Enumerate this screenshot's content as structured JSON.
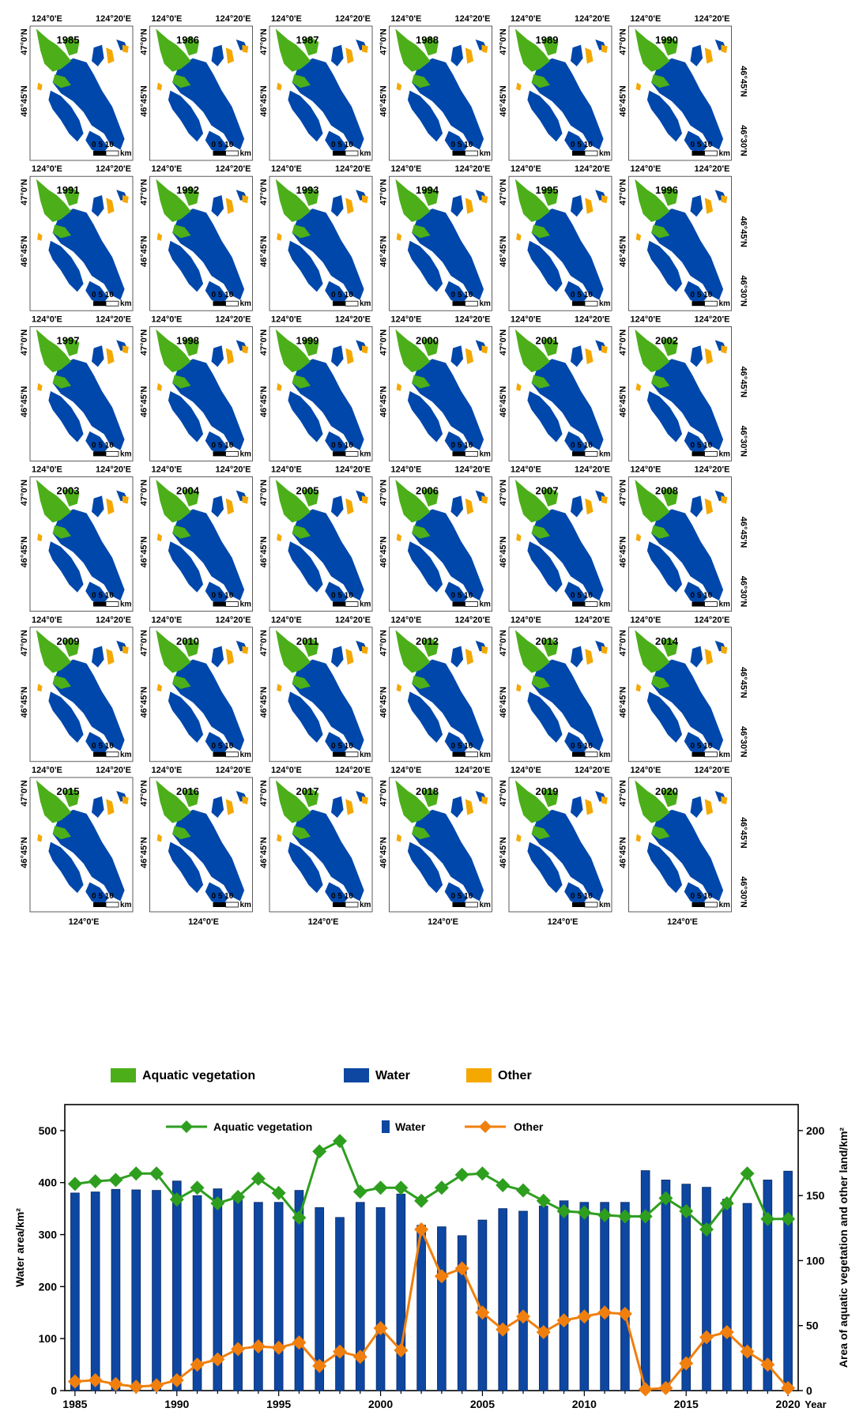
{
  "maps": {
    "years": [
      "1985",
      "1986",
      "1987",
      "1988",
      "1989",
      "1990",
      "1991",
      "1992",
      "1993",
      "1994",
      "1995",
      "1996",
      "1997",
      "1998",
      "1999",
      "2000",
      "2001",
      "2002",
      "2003",
      "2004",
      "2005",
      "2006",
      "2007",
      "2008",
      "2009",
      "2010",
      "2011",
      "2012",
      "2013",
      "2014",
      "2015",
      "2016",
      "2017",
      "2018",
      "2019",
      "2020"
    ],
    "lon_left_label": "124°0'E",
    "lon_right_label": "124°20'E",
    "lat_top_label": "47°0'N",
    "lat_mid_label": "46°45'N",
    "lat_bottom_label": "46°30'N",
    "scale_label": "0   5  10",
    "scale_unit": "km",
    "bottom_lon_label": "124°0'E",
    "colors": {
      "aquatic_vegetation": "#4caf1a",
      "water": "#0047ab",
      "other": "#f5a800"
    }
  },
  "map_legend": {
    "items": [
      {
        "label": "Aquatic vegetation",
        "color": "#4caf1a"
      },
      {
        "label": "Water",
        "color": "#0d47a1"
      },
      {
        "label": "Other",
        "color": "#f5a800"
      }
    ]
  },
  "chart_data": {
    "type": "bar",
    "x": [
      "1985",
      "1986",
      "1987",
      "1988",
      "1989",
      "1990",
      "1991",
      "1992",
      "1993",
      "1994",
      "1995",
      "1996",
      "1997",
      "1998",
      "1999",
      "2000",
      "2001",
      "2002",
      "2003",
      "2004",
      "2005",
      "2006",
      "2007",
      "2008",
      "2009",
      "2010",
      "2011",
      "2012",
      "2013",
      "2014",
      "2015",
      "2016",
      "2017",
      "2018",
      "2019",
      "2020"
    ],
    "x_tick_labels": [
      "1985",
      "1990",
      "1995",
      "2000",
      "2005",
      "2010",
      "2015",
      "2020"
    ],
    "xlabel": "Year",
    "ylabel_left": "Water area/km²",
    "ylabel_right": "Area of aquatic vegetation and other land/km²",
    "ylim_left": [
      0,
      550
    ],
    "yticks_left": [
      "0",
      "100",
      "200",
      "300",
      "400",
      "500"
    ],
    "ylim_right": [
      0,
      220
    ],
    "yticks_right": [
      "0",
      "50",
      "100",
      "150",
      "200"
    ],
    "series": [
      {
        "name": "Water",
        "type": "bar",
        "axis": "left",
        "color": "#0d47a1",
        "values": [
          380,
          382,
          387,
          386,
          385,
          403,
          375,
          388,
          375,
          362,
          362,
          385,
          352,
          333,
          362,
          352,
          378,
          318,
          315,
          298,
          328,
          350,
          345,
          355,
          365,
          362,
          362,
          362,
          423,
          405,
          397,
          391,
          368,
          360,
          405,
          422
        ]
      },
      {
        "name": "Aquatic vegetation",
        "type": "line",
        "axis": "right",
        "color": "#2e9e1f",
        "values": [
          159,
          161,
          162,
          167,
          167,
          147,
          156,
          144,
          149,
          163,
          152,
          133,
          184,
          192,
          153,
          156,
          156,
          146,
          156,
          166,
          167,
          158,
          154,
          146,
          138,
          137,
          135,
          134,
          134,
          148,
          138,
          124,
          144,
          167,
          132,
          132
        ]
      },
      {
        "name": "Other",
        "type": "line",
        "axis": "right",
        "color": "#f07f0e",
        "values": [
          7,
          8,
          5,
          3,
          4,
          8,
          20,
          24,
          32,
          34,
          33,
          37,
          19,
          30,
          26,
          48,
          31,
          124,
          88,
          94,
          60,
          47,
          57,
          45,
          54,
          57,
          60,
          59,
          1,
          2,
          21,
          41,
          45,
          30,
          20,
          2
        ]
      }
    ],
    "legend": [
      "Aquatic vegetation",
      "Water",
      "Other"
    ],
    "legend_position": "top"
  }
}
